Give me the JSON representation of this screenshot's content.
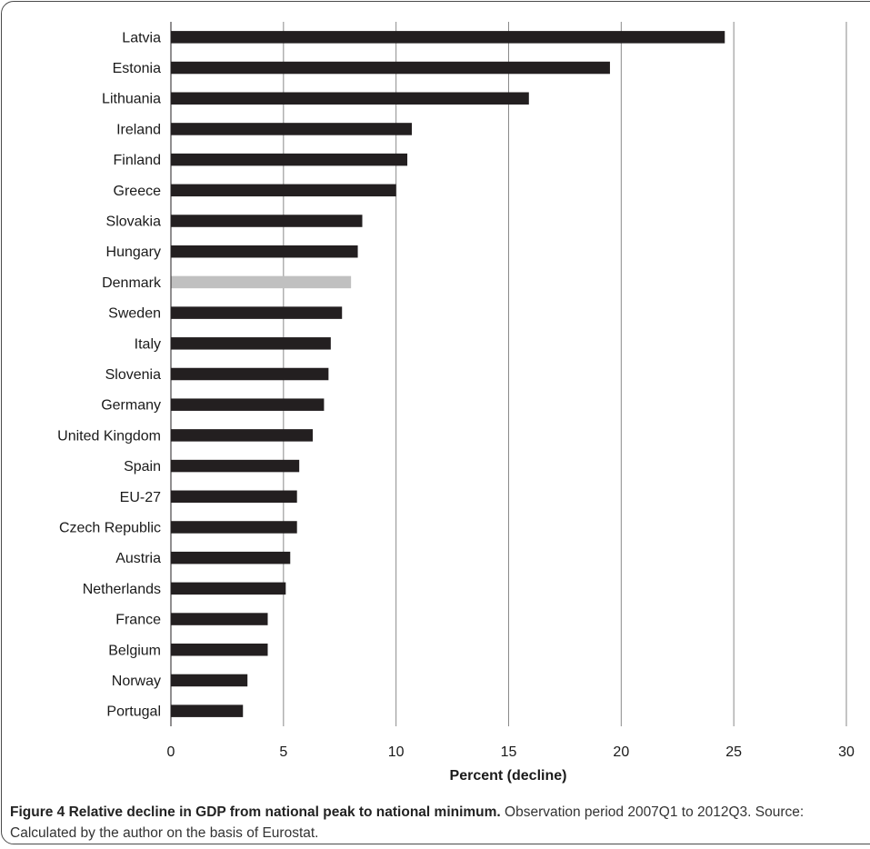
{
  "chart_data": {
    "type": "bar",
    "orientation": "horizontal",
    "categories": [
      "Latvia",
      "Estonia",
      "Lithuania",
      "Ireland",
      "Finland",
      "Greece",
      "Slovakia",
      "Hungary",
      "Denmark",
      "Sweden",
      "Italy",
      "Slovenia",
      "Germany",
      "United Kingdom",
      "Spain",
      "EU-27",
      "Czech Republic",
      "Austria",
      "Netherlands",
      "France",
      "Belgium",
      "Norway",
      "Portugal"
    ],
    "values": [
      24.6,
      19.5,
      15.9,
      10.7,
      10.5,
      10.0,
      8.5,
      8.3,
      8.0,
      7.6,
      7.1,
      7.0,
      6.8,
      6.3,
      5.7,
      5.6,
      5.6,
      5.3,
      5.1,
      4.3,
      4.3,
      3.4,
      3.2
    ],
    "highlight_category": "Denmark",
    "xlabel": "Percent (decline)",
    "ylabel": "",
    "xlim": [
      0,
      30
    ],
    "xticks": [
      "0",
      "5",
      "10",
      "15",
      "20",
      "25",
      "30"
    ],
    "grid": true,
    "colors": {
      "bar": "#231f20",
      "highlight": "#c0c0c0",
      "grid": "#8a8a8a"
    }
  },
  "caption": {
    "label": "Figure 4 Relative decline in GDP from national peak to national minimum.",
    "text": " Observation period 2007Q1 to 2012Q3. Source: Calculated by the author on the basis of Eurostat."
  }
}
